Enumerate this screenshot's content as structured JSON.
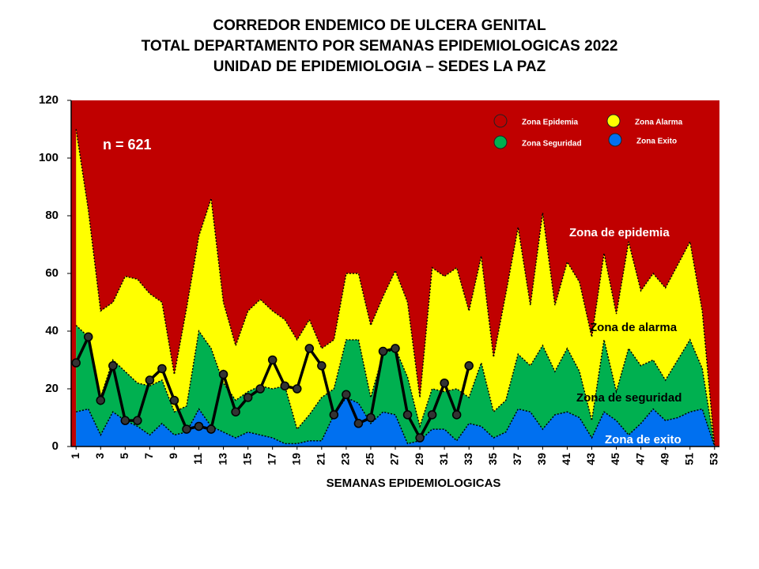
{
  "chart_data": {
    "type": "area",
    "title": [
      "CORREDOR ENDEMICO DE ULCERA GENITAL",
      "TOTAL DEPARTAMENTO POR SEMANAS EPIDEMIOLOGICAS 2022",
      "UNIDAD DE EPIDEMIOLOGIA – SEDES LA PAZ"
    ],
    "x_label": "SEMANAS EPIDEMIOLOGICAS",
    "x": [
      1,
      2,
      3,
      4,
      5,
      6,
      7,
      8,
      9,
      10,
      11,
      12,
      13,
      14,
      15,
      16,
      17,
      18,
      19,
      20,
      21,
      22,
      23,
      24,
      25,
      26,
      27,
      28,
      29,
      30,
      31,
      32,
      33,
      34,
      35,
      36,
      37,
      38,
      39,
      40,
      41,
      42,
      43,
      44,
      45,
      46,
      47,
      48,
      49,
      50,
      51,
      52,
      53
    ],
    "xlim": [
      0.6,
      53.4
    ],
    "xticks": [
      1,
      3,
      5,
      7,
      9,
      11,
      13,
      15,
      17,
      19,
      21,
      23,
      25,
      27,
      29,
      31,
      33,
      35,
      37,
      39,
      41,
      43,
      45,
      47,
      49,
      51,
      53
    ],
    "ylim": [
      0,
      120
    ],
    "yticks": [
      0,
      20,
      40,
      60,
      80,
      100,
      120
    ],
    "background": {
      "name": "Zona Epidemia",
      "color": "#c00000"
    },
    "series": [
      {
        "name": "Zona Alarma",
        "color": "#ffff00",
        "values": [
          110,
          82,
          47,
          50,
          59,
          58,
          53,
          50,
          25,
          48,
          73,
          86,
          50,
          35,
          47,
          51,
          47,
          44,
          37,
          44,
          34,
          37,
          60,
          60,
          42,
          52,
          61,
          50,
          17,
          62,
          59,
          62,
          47,
          66,
          31,
          53,
          76,
          49,
          81,
          49,
          64,
          57,
          38,
          67,
          46,
          71,
          54,
          60,
          55,
          63,
          71,
          47,
          0
        ]
      },
      {
        "name": "Zona Seguridad",
        "color": "#00b050",
        "values": [
          42,
          38,
          17,
          30,
          26,
          22,
          21,
          23,
          12,
          14,
          40,
          34,
          22,
          16,
          19,
          21,
          20,
          21,
          6,
          11,
          17,
          20,
          37,
          37,
          17,
          32,
          34,
          24,
          7,
          20,
          19,
          20,
          17,
          29,
          12,
          16,
          32,
          28,
          35,
          26,
          34,
          26,
          9,
          37,
          19,
          34,
          28,
          30,
          23,
          30,
          37,
          27,
          0
        ]
      },
      {
        "name": "Zona Exito",
        "color": "#0070f0",
        "values": [
          12,
          13,
          4,
          12,
          9,
          7,
          4,
          8,
          4,
          5,
          13,
          7,
          5,
          3,
          5,
          4,
          3,
          1,
          1,
          2,
          2,
          11,
          17,
          15,
          8,
          12,
          11,
          1,
          2,
          6,
          6,
          2,
          8,
          7,
          3,
          5,
          13,
          12,
          6,
          11,
          12,
          10,
          3,
          12,
          9,
          4,
          8,
          13,
          9,
          10,
          12,
          13,
          0
        ]
      },
      {
        "type": "line",
        "color": "#000000",
        "values": [
          29,
          38,
          16,
          28,
          9,
          9,
          23,
          27,
          16,
          6,
          7,
          6,
          25,
          12,
          17,
          20,
          30,
          21,
          20,
          34,
          28,
          11,
          18,
          8,
          10,
          33,
          34,
          11,
          3,
          11,
          22,
          11,
          28,
          null,
          null,
          null,
          null,
          null,
          null,
          null,
          null,
          null,
          null,
          null,
          null,
          null,
          null,
          null,
          null,
          null,
          null,
          null,
          null
        ]
      }
    ],
    "annotations": [
      {
        "text": "n = 621",
        "color": "#ffffff"
      },
      {
        "text": "Zona de epidemia",
        "color": "#ffffff"
      },
      {
        "text": "Zona de alarma",
        "color": "#000000"
      },
      {
        "text": "Zona de  seguridad",
        "color": "#000000"
      },
      {
        "text": "Zona de exito",
        "color": "#ffffff"
      }
    ]
  }
}
